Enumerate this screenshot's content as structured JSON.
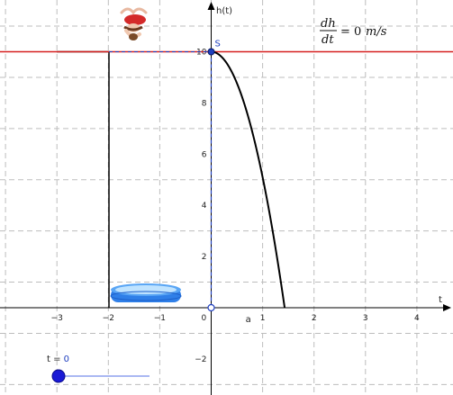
{
  "axes": {
    "x_label": "t",
    "y_label": "h(t)",
    "x_ticks": [
      {
        "value": -3,
        "label": "−3"
      },
      {
        "value": -2,
        "label": "−2"
      },
      {
        "value": -1,
        "label": "−1"
      },
      {
        "value": 0,
        "label": "0"
      },
      {
        "value": 1,
        "label": "1"
      },
      {
        "value": 2,
        "label": "2"
      },
      {
        "value": 3,
        "label": "3"
      },
      {
        "value": 4,
        "label": "4"
      }
    ],
    "y_ticks": [
      {
        "value": -2,
        "label": "−2"
      },
      {
        "value": 2,
        "label": "2"
      },
      {
        "value": 4,
        "label": "4"
      },
      {
        "value": 6,
        "label": "6"
      },
      {
        "value": 8,
        "label": "8"
      },
      {
        "value": 10,
        "label": "10"
      }
    ]
  },
  "formula": {
    "numerator": "dh",
    "denominator": "dt",
    "rhs": "= 0",
    "unit": "m/s"
  },
  "point_s": {
    "label": "S",
    "t": 0,
    "h": 10
  },
  "point_a": {
    "label": "a",
    "t": 0.72,
    "h": 0
  },
  "red_line_h": 10,
  "curve": {
    "h0": 10,
    "g": 4.9
  },
  "slider": {
    "label": "t = ",
    "value": "0",
    "level": 0
  },
  "colors": {
    "red_line": "#d62020",
    "curve": "#000000",
    "dashed_blue": "#1f3fbf",
    "point": "#1f3fbf",
    "pool": "#2f7fe8",
    "slider_track": "#8ea0ee",
    "slider_knob": "#1a1ad6",
    "grid": "#bdbdbd"
  },
  "icons": {
    "diver": "diver-icon",
    "pool": "pool-icon"
  }
}
